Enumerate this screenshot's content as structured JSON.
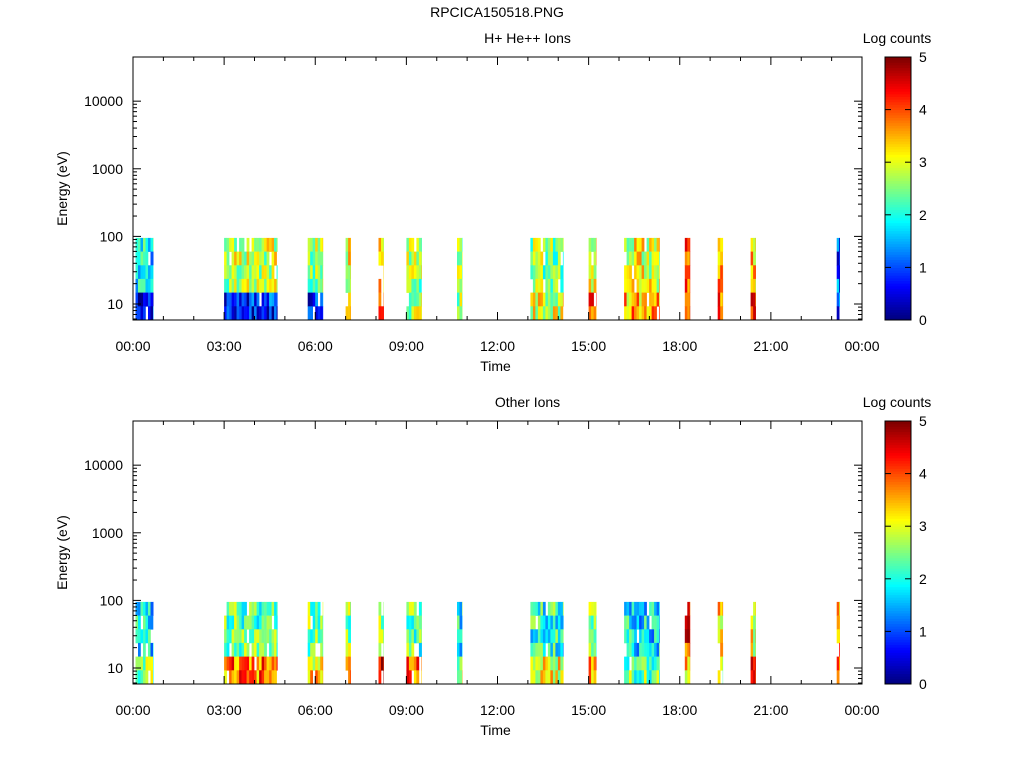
{
  "page": {
    "title": "RPCICA150518.PNG"
  },
  "colorbar": {
    "label": "Log counts",
    "ticks": [
      "0",
      "1",
      "2",
      "3",
      "4",
      "5"
    ],
    "range": [
      0,
      5
    ]
  },
  "x_axis": {
    "label": "Time",
    "ticks": [
      "00:00",
      "03:00",
      "06:00",
      "09:00",
      "12:00",
      "15:00",
      "18:00",
      "21:00",
      "00:00"
    ],
    "range_hours": [
      0,
      24
    ]
  },
  "y_axis": {
    "label": "Energy (eV)",
    "ticks": [
      "10",
      "100",
      "1000",
      "10000"
    ],
    "scale": "log",
    "range_ev": [
      5.8,
      45000
    ]
  },
  "chart_data": [
    {
      "type": "heatmap",
      "title": "H+ He++ Ions",
      "xlabel": "Time",
      "ylabel": "Energy (eV)",
      "colorbar_label": "Log counts",
      "energy_range_ev": [
        5.8,
        95
      ],
      "intervals": [
        {
          "start": "00:05",
          "end": "00:40",
          "log_counts_low_e": 0.6,
          "log_counts_mid_e": 1.8
        },
        {
          "start": "03:00",
          "end": "04:45",
          "log_counts_low_e": 0.8,
          "log_counts_mid_e": 2.8
        },
        {
          "start": "05:45",
          "end": "06:15",
          "log_counts_low_e": 0.7,
          "log_counts_mid_e": 2.7
        },
        {
          "start": "07:00",
          "end": "07:10",
          "log_counts_low_e": 3.0,
          "log_counts_mid_e": 3.0
        },
        {
          "start": "08:05",
          "end": "08:15",
          "log_counts_low_e": 4.5,
          "log_counts_mid_e": 3.2
        },
        {
          "start": "09:00",
          "end": "09:30",
          "log_counts_low_e": 2.7,
          "log_counts_mid_e": 2.7
        },
        {
          "start": "10:40",
          "end": "10:50",
          "log_counts_low_e": 2.5,
          "log_counts_mid_e": 2.5
        },
        {
          "start": "13:05",
          "end": "14:10",
          "log_counts_low_e": 3.0,
          "log_counts_mid_e": 2.6
        },
        {
          "start": "15:00",
          "end": "15:15",
          "log_counts_low_e": 3.8,
          "log_counts_mid_e": 3.0
        },
        {
          "start": "16:10",
          "end": "17:20",
          "log_counts_low_e": 3.5,
          "log_counts_mid_e": 3.0
        },
        {
          "start": "18:10",
          "end": "18:20",
          "log_counts_low_e": 4.3,
          "log_counts_mid_e": 4.2
        },
        {
          "start": "19:15",
          "end": "19:25",
          "log_counts_low_e": 3.8,
          "log_counts_mid_e": 3.5
        },
        {
          "start": "20:20",
          "end": "20:30",
          "log_counts_low_e": 4.0,
          "log_counts_mid_e": 3.3
        },
        {
          "start": "23:10",
          "end": "23:15",
          "log_counts_low_e": 1.0,
          "log_counts_mid_e": 1.0
        }
      ]
    },
    {
      "type": "heatmap",
      "title": "Other Ions",
      "xlabel": "Time",
      "ylabel": "Energy (eV)",
      "colorbar_label": "Log counts",
      "energy_range_ev": [
        5.8,
        95
      ],
      "intervals": [
        {
          "start": "00:05",
          "end": "00:40",
          "log_counts_low_e": 2.6,
          "log_counts_mid_e": 1.8
        },
        {
          "start": "03:00",
          "end": "04:45",
          "log_counts_low_e": 3.8,
          "log_counts_mid_e": 2.3
        },
        {
          "start": "05:45",
          "end": "06:15",
          "log_counts_low_e": 3.3,
          "log_counts_mid_e": 2.4
        },
        {
          "start": "07:00",
          "end": "07:10",
          "log_counts_low_e": 3.8,
          "log_counts_mid_e": 2.5
        },
        {
          "start": "08:05",
          "end": "08:15",
          "log_counts_low_e": 4.6,
          "log_counts_mid_e": 2.7
        },
        {
          "start": "09:00",
          "end": "09:30",
          "log_counts_low_e": 3.8,
          "log_counts_mid_e": 2.3
        },
        {
          "start": "10:40",
          "end": "10:50",
          "log_counts_low_e": 2.8,
          "log_counts_mid_e": 2.0
        },
        {
          "start": "13:05",
          "end": "14:10",
          "log_counts_low_e": 3.0,
          "log_counts_mid_e": 2.1
        },
        {
          "start": "15:00",
          "end": "15:15",
          "log_counts_low_e": 3.8,
          "log_counts_mid_e": 2.5
        },
        {
          "start": "16:10",
          "end": "17:20",
          "log_counts_low_e": 2.4,
          "log_counts_mid_e": 1.8
        },
        {
          "start": "18:10",
          "end": "18:20",
          "log_counts_low_e": 3.5,
          "log_counts_mid_e": 4.2
        },
        {
          "start": "19:15",
          "end": "19:25",
          "log_counts_low_e": 2.6,
          "log_counts_mid_e": 3.3
        },
        {
          "start": "20:20",
          "end": "20:30",
          "log_counts_low_e": 4.0,
          "log_counts_mid_e": 3.0
        },
        {
          "start": "23:10",
          "end": "23:15",
          "log_counts_low_e": 3.6,
          "log_counts_mid_e": 3.6
        }
      ]
    }
  ]
}
